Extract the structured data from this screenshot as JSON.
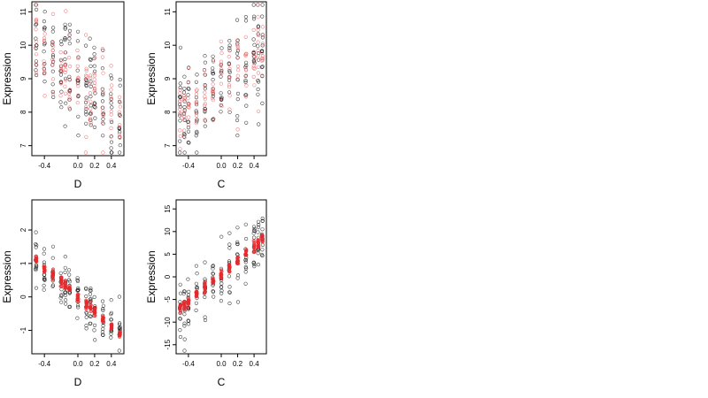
{
  "chart_data": [
    {
      "type": "scatter",
      "xlabel": "D",
      "ylabel": "Expression",
      "xlim": [
        -0.55,
        0.55
      ],
      "ylim": [
        6.7,
        11.3
      ],
      "xticks": [
        -0.4,
        0.0,
        0.2,
        0.4
      ],
      "xtick_labels": [
        "-0.4",
        "0.0",
        "0.2",
        "0.4"
      ],
      "yticks": [
        7,
        8,
        9,
        10,
        11
      ],
      "ytick_labels": [
        "7",
        "8",
        "9",
        "10",
        "11"
      ],
      "grid": false,
      "x_levels": [
        -0.5,
        -0.4,
        -0.3,
        -0.2,
        -0.15,
        -0.1,
        0.0,
        0.1,
        0.15,
        0.2,
        0.3,
        0.4,
        0.5
      ],
      "series": [
        {
          "color": "#000000",
          "fill": "none",
          "mean_intercept": 9.0,
          "mean_slope": -2.6,
          "spread": 0.75,
          "points_per_level": 12
        },
        {
          "color": "#e8585c",
          "fill": "none",
          "mean_intercept": 8.95,
          "mean_slope": -2.3,
          "spread": 0.6,
          "points_per_level": 10
        }
      ]
    },
    {
      "type": "scatter",
      "xlabel": "C",
      "ylabel": "Expression",
      "xlim": [
        -0.55,
        0.55
      ],
      "ylim": [
        6.7,
        11.3
      ],
      "xticks": [
        -0.4,
        0.0,
        0.2,
        0.4
      ],
      "xtick_labels": [
        "-0.4",
        "0.0",
        "0.2",
        "0.4"
      ],
      "yticks": [
        7,
        8,
        9,
        10,
        11
      ],
      "ytick_labels": [
        "7",
        "8",
        "9",
        "10",
        "11"
      ],
      "grid": false,
      "x_levels": [
        -0.5,
        -0.45,
        -0.4,
        -0.3,
        -0.2,
        -0.1,
        0.0,
        0.1,
        0.2,
        0.3,
        0.4,
        0.45,
        0.5
      ],
      "series": [
        {
          "color": "#000000",
          "fill": "none",
          "mean_intercept": 8.75,
          "mean_slope": 1.8,
          "spread": 0.75,
          "points_per_level": 12
        },
        {
          "color": "#e8585c",
          "fill": "none",
          "mean_intercept": 8.85,
          "mean_slope": 1.7,
          "spread": 0.6,
          "points_per_level": 10
        }
      ]
    },
    {
      "type": "scatter",
      "xlabel": "D",
      "ylabel": "Expression",
      "xlim": [
        -0.55,
        0.55
      ],
      "ylim": [
        -1.7,
        2.9
      ],
      "xticks": [
        -0.4,
        0.0,
        0.2,
        0.4
      ],
      "xtick_labels": [
        "-0.4",
        "0.0",
        "0.2",
        "0.4"
      ],
      "yticks": [
        -1,
        0,
        1,
        2
      ],
      "ytick_labels": [
        "-1",
        "0",
        "1",
        "2"
      ],
      "grid": false,
      "x_levels": [
        -0.5,
        -0.4,
        -0.3,
        -0.2,
        -0.15,
        -0.1,
        0.0,
        0.1,
        0.15,
        0.2,
        0.3,
        0.4,
        0.5
      ],
      "series": [
        {
          "color": "#000000",
          "fill": "none",
          "mean_intercept": 0.0,
          "mean_slope": -2.2,
          "spread": 0.35,
          "points_per_level": 12
        },
        {
          "color": "#e8282c",
          "fill": "#e8282c",
          "mean_intercept": 0.0,
          "mean_slope": -2.2,
          "spread": 0.07,
          "points_per_level": 10
        }
      ]
    },
    {
      "type": "scatter",
      "xlabel": "C",
      "ylabel": "Expression",
      "xlim": [
        -0.55,
        0.55
      ],
      "ylim": [
        -17,
        17
      ],
      "xticks": [
        -0.4,
        0.0,
        0.2,
        0.4
      ],
      "xtick_labels": [
        "-0.4",
        "0.0",
        "0.2",
        "0.4"
      ],
      "yticks": [
        -15,
        -10,
        -5,
        0,
        5,
        10,
        15
      ],
      "ytick_labels": [
        "-15",
        "-10",
        "-5",
        "0",
        "5",
        "10",
        "15"
      ],
      "grid": false,
      "x_levels": [
        -0.5,
        -0.45,
        -0.4,
        -0.3,
        -0.2,
        -0.1,
        0.0,
        0.1,
        0.2,
        0.3,
        0.4,
        0.45,
        0.5
      ],
      "series": [
        {
          "color": "#000000",
          "fill": "none",
          "mean_intercept": 0.5,
          "mean_slope": 15.5,
          "spread": 3.5,
          "points_per_level": 12
        },
        {
          "color": "#e8282c",
          "fill": "#e8282c",
          "mean_intercept": 0.5,
          "mean_slope": 15.5,
          "spread": 0.6,
          "points_per_level": 10
        }
      ]
    }
  ]
}
